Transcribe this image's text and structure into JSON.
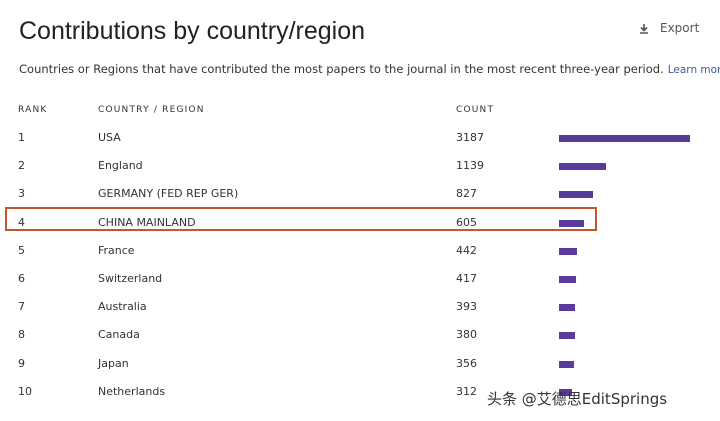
{
  "header": {
    "title": "Contributions by country/region",
    "subtitle": "Countries or Regions that have contributed the most papers to the journal in the most recent three-year period.",
    "learn_more": "Learn more",
    "export": "Export"
  },
  "table": {
    "columns": [
      "RANK",
      "COUNTRY / REGION",
      "COUNT"
    ],
    "rows": [
      [
        1,
        "USA",
        3187
      ],
      [
        2,
        "England",
        1139
      ],
      [
        3,
        "GERMANY (FED REP GER)",
        827
      ],
      [
        4,
        "CHINA MAINLAND",
        605
      ],
      [
        5,
        "France",
        442
      ],
      [
        6,
        "Switzerland",
        417
      ],
      [
        7,
        "Australia",
        393
      ],
      [
        8,
        "Canada",
        380
      ],
      [
        9,
        "Japan",
        356
      ],
      [
        10,
        "Netherlands",
        312
      ]
    ],
    "bar_color": "#5b3a9e"
  },
  "watermark": "头条 @艾德思EditSprings"
}
